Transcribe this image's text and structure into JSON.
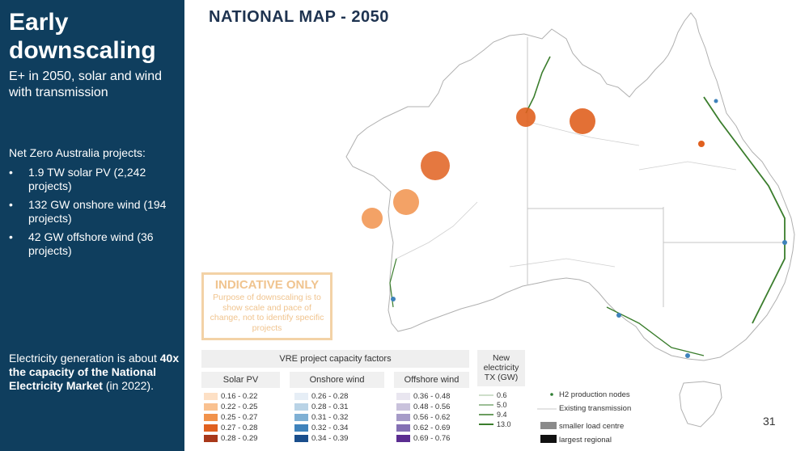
{
  "sidebar": {
    "title": "Early downscaling",
    "subtitle": "E+ in 2050, solar and wind with transmission",
    "projects_heading": "Net Zero Australia projects:",
    "projects": [
      "1.9 TW solar PV (2,242 projects)",
      "132 GW onshore wind (194 projects)",
      "42 GW offshore wind (36 projects)"
    ],
    "bottom_prefix": "Electricity generation is about",
    "bottom_bold": "40x the capacity of the National Electricity Market",
    "bottom_suffix": "(in 2022)."
  },
  "map_title": "NATIONAL MAP - 2050",
  "indicative": {
    "title": "INDICATIVE ONLY",
    "body": "Purpose of downscaling is to show scale and pace of change, not to identify specific projects"
  },
  "legend": {
    "header": "VRE project capacity factors",
    "columns": [
      {
        "title": "Solar PV",
        "items": [
          {
            "label": "0.16 - 0.22",
            "color": "#fde0c5"
          },
          {
            "label": "0.22 - 0.25",
            "color": "#f9c190"
          },
          {
            "label": "0.25 - 0.27",
            "color": "#f1924b"
          },
          {
            "label": "0.27 - 0.28",
            "color": "#e0601f"
          },
          {
            "label": "0.28 - 0.29",
            "color": "#a8381a"
          }
        ]
      },
      {
        "title": "Onshore wind",
        "items": [
          {
            "label": "0.26 - 0.28",
            "color": "#e6eef6"
          },
          {
            "label": "0.28 - 0.31",
            "color": "#b9d3e6"
          },
          {
            "label": "0.31 - 0.32",
            "color": "#7fb0d4"
          },
          {
            "label": "0.32 - 0.34",
            "color": "#3e82bb"
          },
          {
            "label": "0.34 - 0.39",
            "color": "#1a4e8c"
          }
        ]
      },
      {
        "title": "Offshore wind",
        "items": [
          {
            "label": "0.36 - 0.48",
            "color": "#e9e6f0"
          },
          {
            "label": "0.48 - 0.56",
            "color": "#c9c2dc"
          },
          {
            "label": "0.56 - 0.62",
            "color": "#a69bc8"
          },
          {
            "label": "0.62 - 0.69",
            "color": "#8470b4"
          },
          {
            "label": "0.69 - 0.76",
            "color": "#5b2d91"
          }
        ]
      }
    ],
    "tx_title": "New electricity TX (GW)",
    "tx_items": [
      "0.6",
      "5.0",
      "9.4",
      "13.0"
    ],
    "tx_color": "#3a7d2c",
    "keys": {
      "h2": "H2 production nodes",
      "existing": "Existing transmission",
      "smaller": "smaller load centre",
      "largest": "largest regional"
    }
  },
  "page_number": "31"
}
